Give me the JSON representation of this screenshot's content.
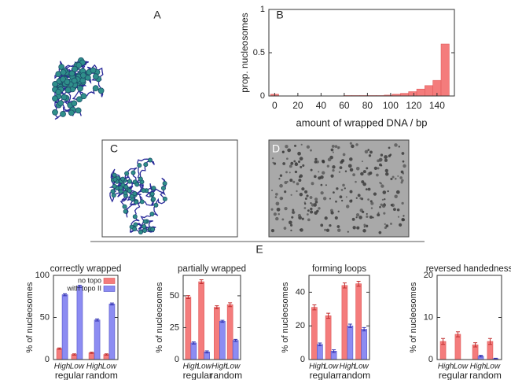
{
  "panel_labels": [
    "A",
    "B",
    "C",
    "D",
    "E"
  ],
  "chart_data": [
    {
      "type": "histogram",
      "xlabel": "amount of wrapped DNA / bp",
      "ylabel": "prop. nucleosomes",
      "bins": [
        -3.5,
        3.5,
        10.5,
        17.5,
        24.5,
        31.5,
        38.5,
        45.5,
        52.5,
        59.5,
        66.5,
        73.5,
        80.5,
        87.5,
        94.5,
        101.5,
        108.5,
        115.5,
        122.5,
        129.5,
        136.5,
        143.5,
        150.5
      ],
      "values": [
        0.02,
        0,
        0,
        0,
        0,
        0,
        0,
        0,
        0,
        0.005,
        0.005,
        0.005,
        0.005,
        0.005,
        0.01,
        0.02,
        0.03,
        0.05,
        0.08,
        0.12,
        0.18,
        0.6
      ],
      "color": "#f47c7c",
      "xlim": [
        -5,
        155
      ],
      "xticks": [
        0,
        20,
        40,
        60,
        80,
        100,
        120,
        140
      ],
      "ylim": [
        0,
        1
      ],
      "yticks": [
        0,
        0.5,
        1
      ]
    },
    {
      "type": "bar",
      "title": "correctly wrapped",
      "ylabel": "% of nucleosomes",
      "categories": [
        "High",
        "Low",
        "High",
        "Low"
      ],
      "groups": [
        "regular",
        "random"
      ],
      "series": [
        {
          "name": "no topo",
          "color": "#f47c7c",
          "values": [
            13,
            6,
            8,
            6
          ],
          "errors": [
            0.8,
            0.8,
            0.8,
            0.8
          ]
        },
        {
          "name": "with topo II",
          "color": "#8c8cf2",
          "values": [
            77,
            87,
            47,
            66
          ],
          "errors": [
            1.2,
            1.2,
            1.2,
            1.2
          ]
        }
      ],
      "ylim": [
        0,
        100
      ],
      "yticks": [
        0,
        50,
        100
      ],
      "legend": "upper right"
    },
    {
      "type": "bar",
      "title": "partially wrapped",
      "ylabel": "% of nucleosomes",
      "categories": [
        "High",
        "Low",
        "High",
        "Low"
      ],
      "groups": [
        "regular",
        "random"
      ],
      "series": [
        {
          "name": "no topo",
          "color": "#f47c7c",
          "values": [
            49,
            61,
            41,
            43
          ],
          "errors": [
            1.2,
            1.5,
            1.2,
            1.5
          ]
        },
        {
          "name": "with topo II",
          "color": "#8c8cf2",
          "values": [
            13,
            6,
            30,
            15
          ],
          "errors": [
            0.8,
            0.8,
            0.8,
            0.8
          ]
        }
      ],
      "ylim": [
        0,
        66
      ],
      "yticks": [
        0,
        25,
        50
      ]
    },
    {
      "type": "bar",
      "title": "forming loops",
      "ylabel": "% of nucleosomes",
      "categories": [
        "High",
        "Low",
        "High",
        "Low"
      ],
      "groups": [
        "regular",
        "random"
      ],
      "series": [
        {
          "name": "no topo",
          "color": "#f47c7c",
          "values": [
            31,
            26,
            44,
            45
          ],
          "errors": [
            1.5,
            1.5,
            1.5,
            1.5
          ]
        },
        {
          "name": "with topo II",
          "color": "#8c8cf2",
          "values": [
            9,
            5,
            20,
            18
          ],
          "errors": [
            0.8,
            0.8,
            1,
            1
          ]
        }
      ],
      "ylim": [
        0,
        50
      ],
      "yticks": [
        0,
        20,
        40
      ]
    },
    {
      "type": "bar",
      "title": "reversed handedness",
      "ylabel": "% of nucleosomes",
      "categories": [
        "High",
        "Low",
        "High",
        "Low"
      ],
      "groups": [
        "regular",
        "random"
      ],
      "series": [
        {
          "name": "no topo",
          "color": "#f47c7c",
          "values": [
            4.3,
            6,
            3.5,
            4.3
          ],
          "errors": [
            0.7,
            0.6,
            0.5,
            0.7
          ]
        },
        {
          "name": "with topo II",
          "color": "#8c8cf2",
          "values": [
            0,
            0,
            0.8,
            0.2
          ],
          "errors": [
            0,
            0,
            0.2,
            0.1
          ]
        }
      ],
      "ylim": [
        0,
        20
      ],
      "yticks": [
        0,
        10,
        20
      ]
    }
  ]
}
